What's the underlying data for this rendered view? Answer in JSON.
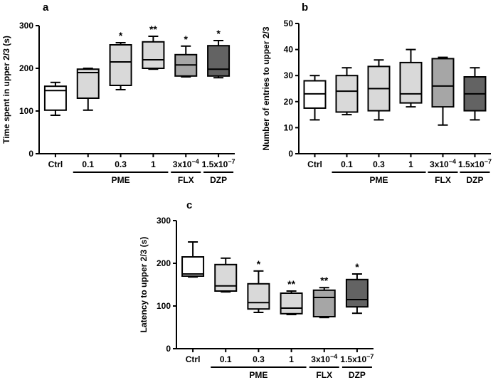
{
  "chart_data": [
    {
      "panel_label": "a",
      "type": "boxplot",
      "ylabel": "Time spent in upper 2/3 (s)",
      "ylim": [
        0,
        300
      ],
      "yticks": [
        0,
        100,
        200,
        300
      ],
      "categories": [
        "Ctrl",
        "0.1",
        "0.3",
        "1",
        "3x10-4",
        "1.5x10-7"
      ],
      "groups": [
        {
          "label": "PME",
          "from": 1,
          "to": 3
        },
        {
          "label": "FLX",
          "from": 4,
          "to": 4
        },
        {
          "label": "DZP",
          "from": 5,
          "to": 5
        }
      ],
      "boxes": [
        {
          "min": 90,
          "q1": 102,
          "median": 148,
          "q3": 158,
          "max": 167,
          "fill": "#ffffff",
          "sig": ""
        },
        {
          "min": 102,
          "q1": 130,
          "median": 190,
          "q3": 198,
          "max": 200,
          "fill": "#d9d9d9",
          "sig": ""
        },
        {
          "min": 150,
          "q1": 160,
          "median": 215,
          "q3": 255,
          "max": 260,
          "fill": "#d9d9d9",
          "sig": "*"
        },
        {
          "min": 198,
          "q1": 200,
          "median": 220,
          "q3": 262,
          "max": 275,
          "fill": "#d9d9d9",
          "sig": "**"
        },
        {
          "min": 180,
          "q1": 182,
          "median": 208,
          "q3": 232,
          "max": 252,
          "fill": "#a6a6a6",
          "sig": "*"
        },
        {
          "min": 178,
          "q1": 182,
          "median": 198,
          "q3": 253,
          "max": 265,
          "fill": "#636363",
          "sig": "*"
        }
      ]
    },
    {
      "panel_label": "b",
      "type": "boxplot",
      "ylabel": "Number of entries to upper 2/3",
      "ylim": [
        0,
        50
      ],
      "yticks": [
        0,
        10,
        20,
        30,
        40,
        50
      ],
      "categories": [
        "Ctrl",
        "0.1",
        "0.3",
        "1",
        "3x10-4",
        "1.5x10-7"
      ],
      "groups": [
        {
          "label": "PME",
          "from": 1,
          "to": 3
        },
        {
          "label": "FLX",
          "from": 4,
          "to": 4
        },
        {
          "label": "DZP",
          "from": 5,
          "to": 5
        }
      ],
      "boxes": [
        {
          "min": 13,
          "q1": 17.5,
          "median": 23,
          "q3": 28,
          "max": 30,
          "fill": "#ffffff",
          "sig": ""
        },
        {
          "min": 15,
          "q1": 16,
          "median": 24,
          "q3": 30,
          "max": 33,
          "fill": "#d9d9d9",
          "sig": ""
        },
        {
          "min": 13,
          "q1": 16.5,
          "median": 25,
          "q3": 33.5,
          "max": 36,
          "fill": "#d9d9d9",
          "sig": ""
        },
        {
          "min": 18,
          "q1": 19.5,
          "median": 23,
          "q3": 35,
          "max": 40,
          "fill": "#d9d9d9",
          "sig": ""
        },
        {
          "min": 11,
          "q1": 18,
          "median": 26,
          "q3": 36.5,
          "max": 37,
          "fill": "#a6a6a6",
          "sig": ""
        },
        {
          "min": 13,
          "q1": 16.5,
          "median": 23,
          "q3": 29.5,
          "max": 33,
          "fill": "#636363",
          "sig": ""
        }
      ]
    },
    {
      "panel_label": "c",
      "type": "boxplot",
      "ylabel": "Latency to upper 2/3 (s)",
      "ylim": [
        0,
        300
      ],
      "yticks": [
        0,
        100,
        200,
        300
      ],
      "categories": [
        "Ctrl",
        "0.1",
        "0.3",
        "1",
        "3x10-4",
        "1.5x10-7"
      ],
      "groups": [
        {
          "label": "PME",
          "from": 1,
          "to": 3
        },
        {
          "label": "FLX",
          "from": 4,
          "to": 4
        },
        {
          "label": "DZP",
          "from": 5,
          "to": 5
        }
      ],
      "boxes": [
        {
          "min": 168,
          "q1": 170,
          "median": 175,
          "q3": 215,
          "max": 250,
          "fill": "#ffffff",
          "sig": ""
        },
        {
          "min": 133,
          "q1": 135,
          "median": 147,
          "q3": 197,
          "max": 212,
          "fill": "#d9d9d9",
          "sig": ""
        },
        {
          "min": 85,
          "q1": 93,
          "median": 108,
          "q3": 152,
          "max": 182,
          "fill": "#d9d9d9",
          "sig": "*"
        },
        {
          "min": 80,
          "q1": 82,
          "median": 95,
          "q3": 130,
          "max": 135,
          "fill": "#d9d9d9",
          "sig": "**"
        },
        {
          "min": 73,
          "q1": 75,
          "median": 120,
          "q3": 137,
          "max": 143,
          "fill": "#a6a6a6",
          "sig": "**"
        },
        {
          "min": 83,
          "q1": 98,
          "median": 115,
          "q3": 162,
          "max": 175,
          "fill": "#636363",
          "sig": "*"
        }
      ]
    }
  ]
}
